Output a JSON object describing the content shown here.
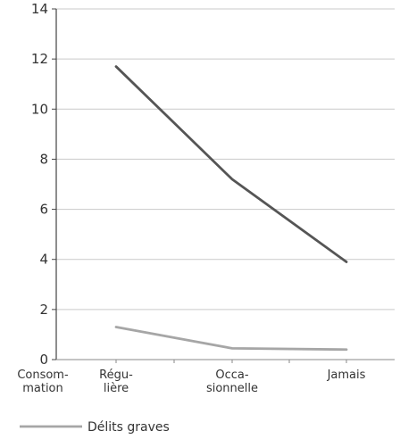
{
  "chart_data": {
    "type": "line",
    "categories": [
      "Régu-\nlière",
      "Occa-\nsionnelle",
      "Jamais"
    ],
    "x_axis_title": "Consom-\nmation",
    "ylim": [
      0,
      14
    ],
    "yticks": [
      0,
      2,
      4,
      6,
      8,
      10,
      12,
      14
    ],
    "grid": true,
    "legend_position": "bottom-left",
    "series": [
      {
        "values": [
          11.7,
          7.2,
          3.9
        ],
        "color": "#555555"
      },
      {
        "name": "Délits graves",
        "values": [
          1.3,
          0.45,
          0.4
        ],
        "color": "#a6a6a6"
      }
    ]
  }
}
